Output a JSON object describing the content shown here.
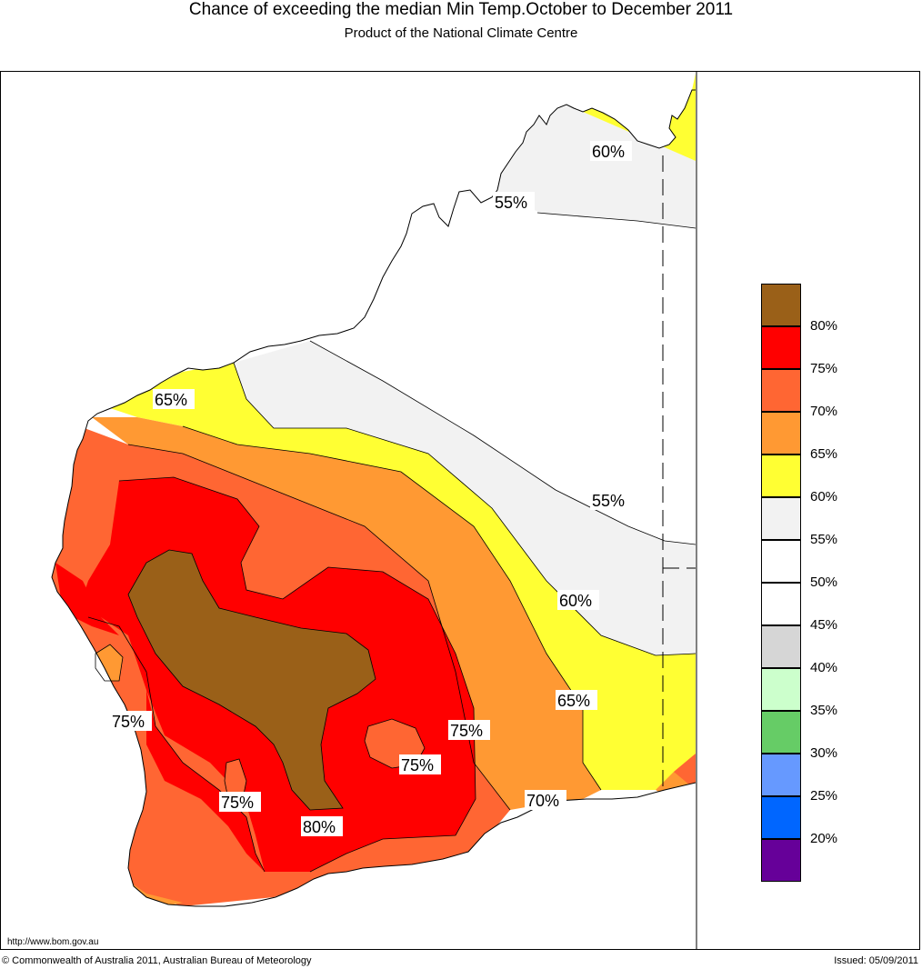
{
  "title": "Chance of exceeding the median Min Temp.October to December 2011",
  "subtitle": "Product of the National Climate Centre",
  "url": "http://www.bom.gov.au",
  "copyright": "© Commonwealth of Australia 2011, Australian Bureau of Meteorology",
  "issued": "Issued: 05/09/2011",
  "legend": {
    "bins": [
      {
        "color": "#9a6018",
        "label": "80%"
      },
      {
        "color": "#ff0000",
        "label": "75%"
      },
      {
        "color": "#ff6633",
        "label": "70%"
      },
      {
        "color": "#ff9933",
        "label": "65%"
      },
      {
        "color": "#ffff33",
        "label": "60%"
      },
      {
        "color": "#f2f2f2",
        "label": "55%"
      },
      {
        "color": "#ffffff",
        "label": "50%"
      },
      {
        "color": "#ffffff",
        "label": "45%"
      },
      {
        "color": "#d6d6d6",
        "label": "40%"
      },
      {
        "color": "#ccffcc",
        "label": "35%"
      },
      {
        "color": "#66cc66",
        "label": "30%"
      },
      {
        "color": "#6699ff",
        "label": "25%"
      },
      {
        "color": "#0066ff",
        "label": "20%"
      },
      {
        "color": "#660099",
        "label": ""
      }
    ]
  },
  "contour_labels": [
    "60%",
    "55%",
    "65%",
    "55%",
    "60%",
    "65%",
    "70%",
    "75%",
    "75%",
    "75%",
    "75%",
    "80%"
  ]
}
